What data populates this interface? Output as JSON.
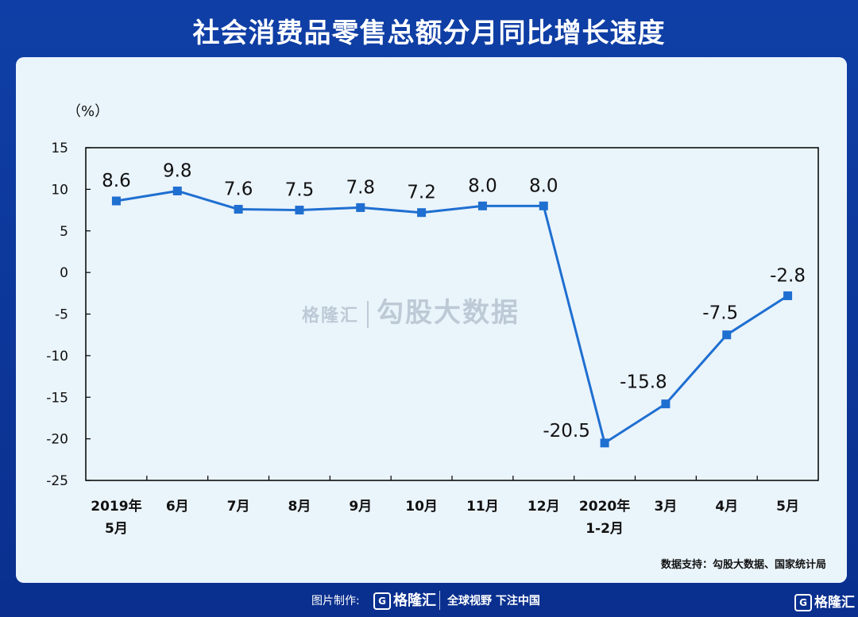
{
  "title": "社会消费品零售总额分月同比增长速度",
  "unit_label": "（%）",
  "source": "数据支持：勾股大数据、国家统计局",
  "watermark": {
    "logo": "格隆汇",
    "text": "勾股大数据"
  },
  "footer": {
    "credit": "图片制作:",
    "logo": "格隆汇",
    "slogan": "全球视野 下注中国",
    "corner_logo": "格隆汇"
  },
  "colors": {
    "line": "#1f6fd1",
    "background": "#0f3fa6",
    "panel": "#eaf4fb"
  },
  "chart_data": {
    "type": "line",
    "title": "社会消费品零售总额分月同比增长速度",
    "ylabel": "（%）",
    "ylim": [
      -25,
      15
    ],
    "yticks": [
      15,
      10,
      5,
      0,
      -5,
      -10,
      -15,
      -20,
      -25
    ],
    "grid": false,
    "categories": [
      [
        "2019年",
        "5月"
      ],
      [
        "6月"
      ],
      [
        "7月"
      ],
      [
        "8月"
      ],
      [
        "9月"
      ],
      [
        "10月"
      ],
      [
        "11月"
      ],
      [
        "12月"
      ],
      [
        "2020年",
        "1-2月"
      ],
      [
        "3月"
      ],
      [
        "4月"
      ],
      [
        "5月"
      ]
    ],
    "series": [
      {
        "values": [
          8.6,
          9.8,
          7.6,
          7.5,
          7.8,
          7.2,
          8.0,
          8.0,
          -20.5,
          -15.8,
          -7.5,
          -2.8
        ]
      }
    ],
    "data_labels": [
      "8.6",
      "9.8",
      "7.6",
      "7.5",
      "7.8",
      "7.2",
      "8.0",
      "8.0",
      "-20.5",
      "-15.8",
      "-7.5",
      "-2.8"
    ]
  }
}
